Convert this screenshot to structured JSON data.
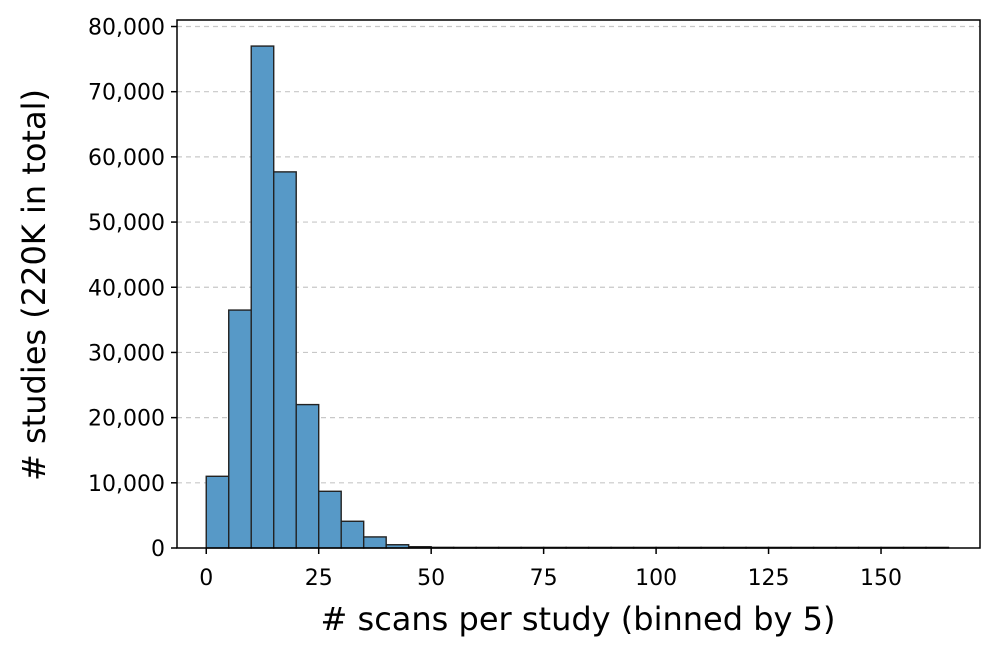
{
  "chart_data": {
    "type": "bar",
    "title": "",
    "xlabel": "# scans per study (binned by 5)",
    "ylabel": "# studies (220K in total)",
    "bin_width": 5,
    "bins": [
      0,
      5,
      10,
      15,
      20,
      25,
      30,
      35,
      40,
      45,
      50,
      55,
      60,
      65,
      70,
      75,
      80,
      85,
      90,
      95,
      100,
      105,
      110,
      115,
      120,
      125,
      130,
      135,
      140,
      145,
      150,
      155,
      160
    ],
    "values": [
      11000,
      36500,
      77000,
      57700,
      22000,
      8700,
      4100,
      1700,
      500,
      200,
      100,
      50,
      30,
      20,
      15,
      10,
      8,
      6,
      5,
      4,
      3,
      3,
      2,
      2,
      2,
      1,
      1,
      1,
      1,
      1,
      1,
      1,
      1
    ],
    "xlim": [
      -6.5,
      172
    ],
    "ylim": [
      0,
      81000
    ],
    "xticks": [
      0,
      25,
      50,
      75,
      100,
      125,
      150
    ],
    "xtick_labels": [
      "0",
      "25",
      "50",
      "75",
      "100",
      "125",
      "150"
    ],
    "yticks": [
      0,
      10000,
      20000,
      30000,
      40000,
      50000,
      60000,
      70000,
      80000
    ],
    "ytick_labels": [
      "0",
      "10,000",
      "20,000",
      "30,000",
      "40,000",
      "50,000",
      "60,000",
      "70,000",
      "80,000"
    ],
    "grid": "y-dashed",
    "bar_color": "#5799c7",
    "bar_edge_color": "#222222",
    "grid_color": "#c8c8c8"
  }
}
